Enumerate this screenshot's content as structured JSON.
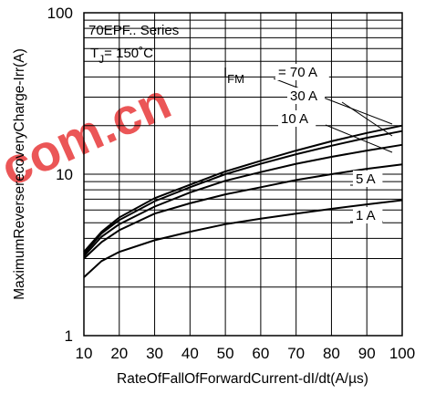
{
  "chart_data": {
    "type": "line",
    "xlabel": "RateOfFallOfForwardCurrent-dI/dt(A/µs)",
    "ylabel": "MaximumReverserecoveryCharge-Irr(A)",
    "xlim": [
      10,
      100
    ],
    "ylim": [
      1,
      100
    ],
    "yscale": "log",
    "grid": true,
    "x_ticks": [
      "10",
      "20",
      "30",
      "40",
      "50",
      "60",
      "70",
      "80",
      "90",
      "100"
    ],
    "y_ticks": [
      "1",
      "10",
      "100"
    ],
    "series_label": "70EPF.. Series",
    "condition": {
      "prefix": "T",
      "subscript": "J",
      "value": "= 150˚C"
    },
    "current_prefix": {
      "letter": "I",
      "subscript": "FM"
    },
    "series": [
      {
        "name": "= 70 A",
        "x": [
          10,
          15,
          20,
          30,
          40,
          50,
          60,
          70,
          80,
          90,
          100
        ],
        "y": [
          3.3,
          4.4,
          5.4,
          7.1,
          8.6,
          10.4,
          12.1,
          14.0,
          16.0,
          18.0,
          20.0
        ]
      },
      {
        "name": "30 A",
        "x": [
          10,
          15,
          20,
          30,
          40,
          50,
          60,
          70,
          80,
          90,
          100
        ],
        "y": [
          3.2,
          4.3,
          5.2,
          6.8,
          8.3,
          10.0,
          11.6,
          13.3,
          15.0,
          16.8,
          18.5
        ]
      },
      {
        "name": "10 A",
        "x": [
          10,
          15,
          20,
          30,
          40,
          50,
          60,
          70,
          80,
          90,
          100
        ],
        "y": [
          3.1,
          4.1,
          4.9,
          6.3,
          7.7,
          9.1,
          10.3,
          11.6,
          12.8,
          14.0,
          15.2
        ]
      },
      {
        "name": "5 A",
        "x": [
          10,
          15,
          20,
          30,
          40,
          50,
          60,
          70,
          80,
          90,
          100
        ],
        "y": [
          3.0,
          3.8,
          4.5,
          5.7,
          6.6,
          7.5,
          8.3,
          9.2,
          10.0,
          10.8,
          11.5
        ]
      },
      {
        "name": "1 A",
        "x": [
          10,
          15,
          20,
          30,
          40,
          50,
          60,
          70,
          80,
          90,
          100
        ],
        "y": [
          2.3,
          2.9,
          3.3,
          3.9,
          4.4,
          4.9,
          5.3,
          5.7,
          6.1,
          6.5,
          6.9
        ]
      }
    ],
    "watermark": "com.cn"
  }
}
